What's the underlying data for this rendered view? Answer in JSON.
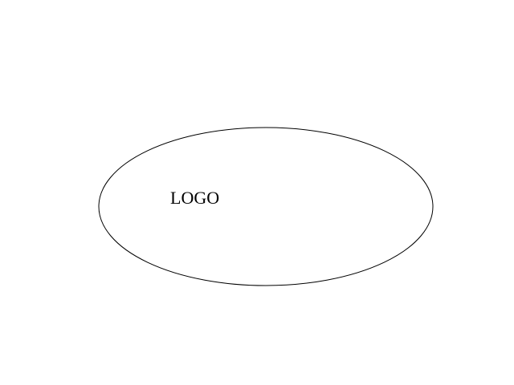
{
  "logo": {
    "label": "LOGO"
  },
  "colors": {
    "background": "#ffffff",
    "outline": "#000000",
    "text": "#000000"
  }
}
